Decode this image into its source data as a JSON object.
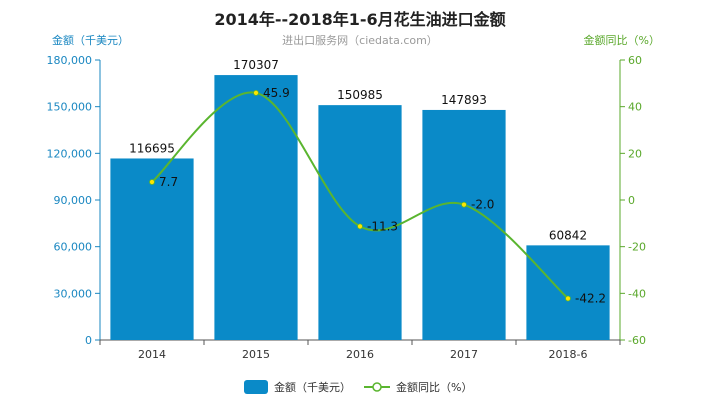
{
  "chart_data": {
    "type": "bar",
    "title": "2014年--2018年1-6月花生油进口金额",
    "subtitle": "进出口服务网（ciedata.com）",
    "ylabel_left": "金额（千美元）",
    "ylabel_right": "金额同比（%）",
    "categories": [
      "2014",
      "2015",
      "2016",
      "2017",
      "2018-6"
    ],
    "series": [
      {
        "name": "金额（千美元）",
        "type": "bar",
        "axis": "left",
        "values": [
          116695,
          170307,
          150985,
          147893,
          60842
        ],
        "labels": [
          "116695",
          "170307",
          "150985",
          "147893",
          "60842"
        ]
      },
      {
        "name": "金额同比（%）",
        "type": "line",
        "axis": "right",
        "values": [
          7.7,
          45.9,
          -11.3,
          -2.0,
          -42.2
        ],
        "labels": [
          "7.7",
          "45.9",
          "-11.3",
          "-2.0",
          "-42.2"
        ]
      }
    ],
    "left_ylim": [
      0,
      180000
    ],
    "left_ticks": [
      "0",
      "30,000",
      "60,000",
      "90,000",
      "120,000",
      "150,000",
      "180,000"
    ],
    "right_ylim": [
      -60,
      60
    ],
    "right_ticks": [
      "-60",
      "-40",
      "-20",
      "0",
      "20",
      "40",
      "60"
    ],
    "legend_position": "bottom",
    "colors": {
      "bar": "#0a8ac8",
      "line": "#5ab52f",
      "left_axis": "#1a87c1",
      "right_axis": "#5aa82b"
    }
  }
}
